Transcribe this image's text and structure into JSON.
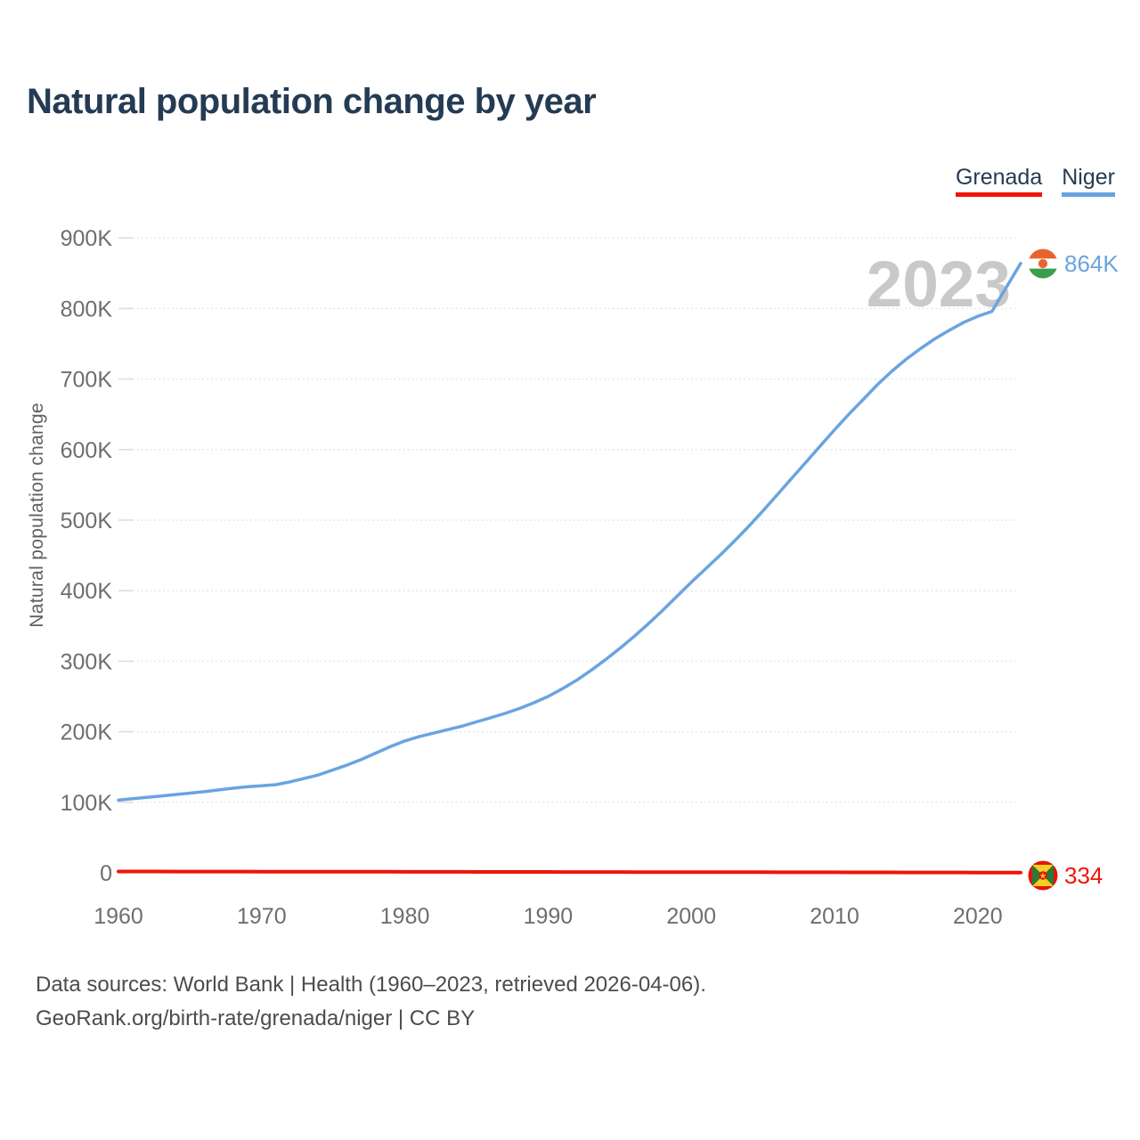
{
  "header": {
    "title": "Natural population change by year"
  },
  "legend": {
    "items": [
      {
        "label": "Grenada",
        "color": "#f0140a"
      },
      {
        "label": "Niger",
        "color": "#6aa4e0"
      }
    ]
  },
  "footer": {
    "line1": "Data sources: World Bank | Health (1960–2023, retrieved 2026-04-06).",
    "line2": "GeoRank.org/birth-rate/grenada/niger | CC BY"
  },
  "chart_data": {
    "type": "line",
    "title": "Natural population change by year",
    "xlabel": "",
    "ylabel": "Natural population change",
    "watermark_year": "2023",
    "legend_position": "top-right",
    "grid": "dotted horizontal",
    "xlim": [
      1960,
      2023
    ],
    "ylim": [
      0,
      940000
    ],
    "xticks": [
      1960,
      1970,
      1980,
      1990,
      2000,
      2010,
      2020
    ],
    "yticks": [
      {
        "value": 0,
        "label": "0"
      },
      {
        "value": 100000,
        "label": "100K"
      },
      {
        "value": 200000,
        "label": "200K"
      },
      {
        "value": 300000,
        "label": "300K"
      },
      {
        "value": 400000,
        "label": "400K"
      },
      {
        "value": 500000,
        "label": "500K"
      },
      {
        "value": 600000,
        "label": "600K"
      },
      {
        "value": 700000,
        "label": "700K"
      },
      {
        "value": 800000,
        "label": "800K"
      },
      {
        "value": 900000,
        "label": "900K"
      }
    ],
    "x": [
      1960,
      1961,
      1962,
      1963,
      1964,
      1965,
      1966,
      1967,
      1968,
      1969,
      1970,
      1971,
      1972,
      1973,
      1974,
      1975,
      1976,
      1977,
      1978,
      1979,
      1980,
      1981,
      1982,
      1983,
      1984,
      1985,
      1986,
      1987,
      1988,
      1989,
      1990,
      1991,
      1992,
      1993,
      1994,
      1995,
      1996,
      1997,
      1998,
      1999,
      2000,
      2001,
      2002,
      2003,
      2004,
      2005,
      2006,
      2007,
      2008,
      2009,
      2010,
      2011,
      2012,
      2013,
      2014,
      2015,
      2016,
      2017,
      2018,
      2019,
      2020,
      2021,
      2022,
      2023
    ],
    "series": [
      {
        "name": "Grenada",
        "color": "#f0140a",
        "end_label": "334",
        "flag": "grenada-flag-icon",
        "values": [
          1900,
          1880,
          1860,
          1840,
          1820,
          1800,
          1780,
          1760,
          1740,
          1720,
          1700,
          1675,
          1650,
          1625,
          1600,
          1575,
          1550,
          1525,
          1500,
          1475,
          1450,
          1425,
          1400,
          1375,
          1350,
          1325,
          1300,
          1275,
          1250,
          1225,
          1200,
          1175,
          1150,
          1125,
          1100,
          1075,
          1050,
          1025,
          1000,
          975,
          950,
          925,
          900,
          875,
          850,
          825,
          800,
          775,
          750,
          725,
          700,
          673,
          646,
          619,
          592,
          565,
          538,
          511,
          484,
          457,
          430,
          400,
          370,
          334
        ]
      },
      {
        "name": "Niger",
        "color": "#6aa4e0",
        "end_label": "864K",
        "flag": "niger-flag-icon",
        "values": [
          103000,
          105000,
          107000,
          109000,
          111000,
          113000,
          115000,
          117500,
          120000,
          122000,
          123500,
          125000,
          129000,
          134000,
          139000,
          146000,
          153000,
          161000,
          170000,
          179000,
          187000,
          193000,
          198000,
          203000,
          208000,
          214000,
          220000,
          226000,
          233000,
          241000,
          250000,
          261000,
          273000,
          287000,
          302000,
          318000,
          335000,
          353000,
          372000,
          392000,
          412000,
          431000,
          450000,
          470000,
          491000,
          513000,
          536000,
          559000,
          582000,
          605000,
          628000,
          650000,
          671000,
          692000,
          711000,
          728000,
          743000,
          757000,
          769000,
          780000,
          789000,
          796000,
          830000,
          864000
        ]
      }
    ]
  }
}
